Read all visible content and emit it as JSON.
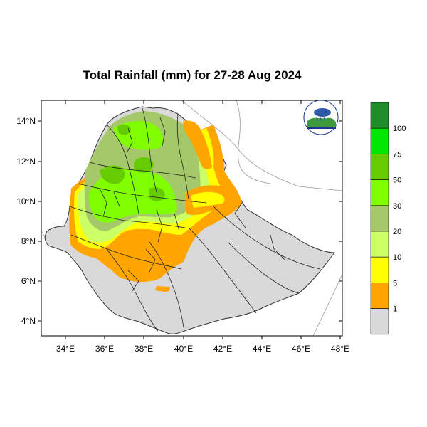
{
  "title": "Total Rainfall (mm) for 27-28 Aug 2024",
  "map": {
    "lat_ticks": [
      "14°N",
      "12°N",
      "10°N",
      "8°N",
      "6°N",
      "4°N"
    ],
    "lon_ticks": [
      "34°E",
      "36°E",
      "38°E",
      "40°E",
      "42°E",
      "44°E",
      "46°E",
      "48°E"
    ],
    "lat_range": [
      3.2,
      15.0
    ],
    "lon_range": [
      33.0,
      48.2
    ]
  },
  "legend": {
    "labels": [
      "100",
      "75",
      "50",
      "30",
      "20",
      "10",
      "5",
      "1"
    ],
    "colors": [
      "#1e8c28",
      "#00e600",
      "#66cc00",
      "#80ff00",
      "#a5c86a",
      "#ccff66",
      "#ffff00",
      "#ffa500",
      "#d9d9d9"
    ]
  },
  "colors": {
    "no_rain": "#d9d9d9",
    "rain_1_5": "#ffa500",
    "rain_5_10": "#ffff00",
    "rain_10_20": "#ccff66",
    "rain_20_30": "#a5c86a",
    "rain_30_50": "#80ff00",
    "rain_50_75": "#66cc00"
  }
}
